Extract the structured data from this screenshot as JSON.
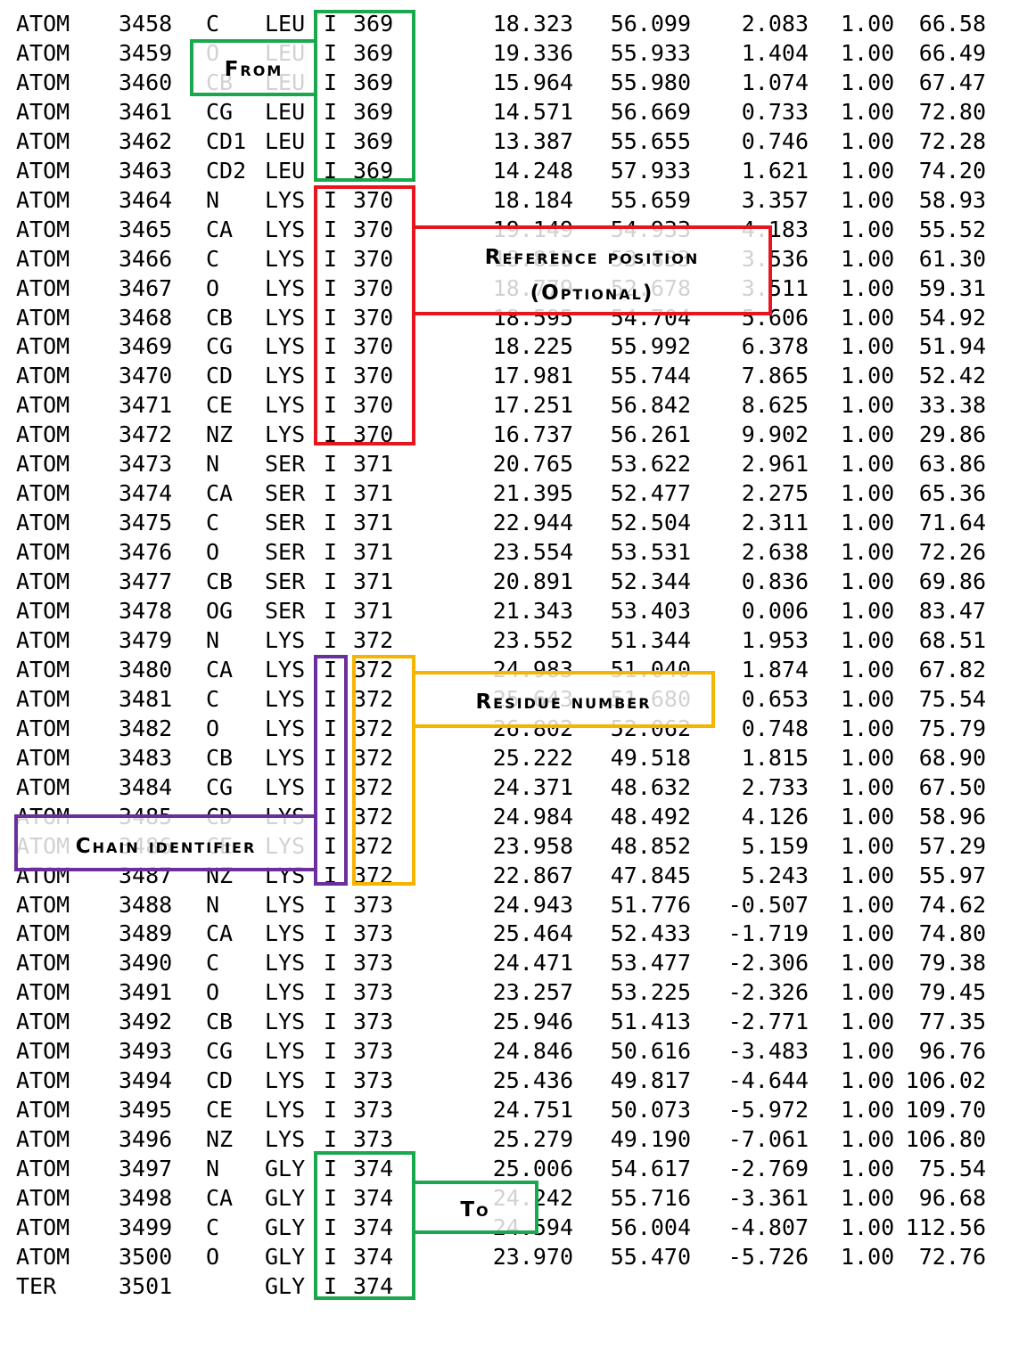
{
  "rows": [
    [
      "ATOM",
      "3458",
      "C",
      "LEU",
      "I",
      "369",
      "18.323",
      "56.099",
      "2.083",
      "1.00",
      "66.58"
    ],
    [
      "ATOM",
      "3459",
      "O",
      "LEU",
      "I",
      "369",
      "19.336",
      "55.933",
      "1.404",
      "1.00",
      "66.49"
    ],
    [
      "ATOM",
      "3460",
      "CB",
      "LEU",
      "I",
      "369",
      "15.964",
      "55.980",
      "1.074",
      "1.00",
      "67.47"
    ],
    [
      "ATOM",
      "3461",
      "CG",
      "LEU",
      "I",
      "369",
      "14.571",
      "56.669",
      "0.733",
      "1.00",
      "72.80"
    ],
    [
      "ATOM",
      "3462",
      "CD1",
      "LEU",
      "I",
      "369",
      "13.387",
      "55.655",
      "0.746",
      "1.00",
      "72.28"
    ],
    [
      "ATOM",
      "3463",
      "CD2",
      "LEU",
      "I",
      "369",
      "14.248",
      "57.933",
      "1.621",
      "1.00",
      "74.20"
    ],
    [
      "ATOM",
      "3464",
      "N",
      "LYS",
      "I",
      "370",
      "18.184",
      "55.659",
      "3.357",
      "1.00",
      "58.93"
    ],
    [
      "ATOM",
      "3465",
      "CA",
      "LYS",
      "I",
      "370",
      "19.149",
      "54.933",
      "4.183",
      "1.00",
      "55.52"
    ],
    [
      "ATOM",
      "3466",
      "C",
      "LYS",
      "I",
      "370",
      "18.818",
      "53.833",
      "3.536",
      "1.00",
      "61.30"
    ],
    [
      "ATOM",
      "3467",
      "O",
      "LYS",
      "I",
      "370",
      "18.779",
      "52.678",
      "3.511",
      "1.00",
      "59.31"
    ],
    [
      "ATOM",
      "3468",
      "CB",
      "LYS",
      "I",
      "370",
      "18.595",
      "54.704",
      "5.606",
      "1.00",
      "54.92"
    ],
    [
      "ATOM",
      "3469",
      "CG",
      "LYS",
      "I",
      "370",
      "18.225",
      "55.992",
      "6.378",
      "1.00",
      "51.94"
    ],
    [
      "ATOM",
      "3470",
      "CD",
      "LYS",
      "I",
      "370",
      "17.981",
      "55.744",
      "7.865",
      "1.00",
      "52.42"
    ],
    [
      "ATOM",
      "3471",
      "CE",
      "LYS",
      "I",
      "370",
      "17.251",
      "56.842",
      "8.625",
      "1.00",
      "33.38"
    ],
    [
      "ATOM",
      "3472",
      "NZ",
      "LYS",
      "I",
      "370",
      "16.737",
      "56.261",
      "9.902",
      "1.00",
      "29.86"
    ],
    [
      "ATOM",
      "3473",
      "N",
      "SER",
      "I",
      "371",
      "20.765",
      "53.622",
      "2.961",
      "1.00",
      "63.86"
    ],
    [
      "ATOM",
      "3474",
      "CA",
      "SER",
      "I",
      "371",
      "21.395",
      "52.477",
      "2.275",
      "1.00",
      "65.36"
    ],
    [
      "ATOM",
      "3475",
      "C",
      "SER",
      "I",
      "371",
      "22.944",
      "52.504",
      "2.311",
      "1.00",
      "71.64"
    ],
    [
      "ATOM",
      "3476",
      "O",
      "SER",
      "I",
      "371",
      "23.554",
      "53.531",
      "2.638",
      "1.00",
      "72.26"
    ],
    [
      "ATOM",
      "3477",
      "CB",
      "SER",
      "I",
      "371",
      "20.891",
      "52.344",
      "0.836",
      "1.00",
      "69.86"
    ],
    [
      "ATOM",
      "3478",
      "OG",
      "SER",
      "I",
      "371",
      "21.343",
      "53.403",
      "0.006",
      "1.00",
      "83.47"
    ],
    [
      "ATOM",
      "3479",
      "N",
      "LYS",
      "I",
      "372",
      "23.552",
      "51.344",
      "1.953",
      "1.00",
      "68.51"
    ],
    [
      "ATOM",
      "3480",
      "CA",
      "LYS",
      "I",
      "372",
      "24.983",
      "51.040",
      "1.874",
      "1.00",
      "67.82"
    ],
    [
      "ATOM",
      "3481",
      "C",
      "LYS",
      "I",
      "372",
      "25.643",
      "51.680",
      "0.653",
      "1.00",
      "75.54"
    ],
    [
      "ATOM",
      "3482",
      "O",
      "LYS",
      "I",
      "372",
      "26.802",
      "52.062",
      "0.748",
      "1.00",
      "75.79"
    ],
    [
      "ATOM",
      "3483",
      "CB",
      "LYS",
      "I",
      "372",
      "25.222",
      "49.518",
      "1.815",
      "1.00",
      "68.90"
    ],
    [
      "ATOM",
      "3484",
      "CG",
      "LYS",
      "I",
      "372",
      "24.371",
      "48.632",
      "2.733",
      "1.00",
      "67.50"
    ],
    [
      "ATOM",
      "3485",
      "CD",
      "LYS",
      "I",
      "372",
      "24.984",
      "48.492",
      "4.126",
      "1.00",
      "58.96"
    ],
    [
      "ATOM",
      "3486",
      "CE",
      "LYS",
      "I",
      "372",
      "23.958",
      "48.852",
      "5.159",
      "1.00",
      "57.29"
    ],
    [
      "ATOM",
      "3487",
      "NZ",
      "LYS",
      "I",
      "372",
      "22.867",
      "47.845",
      "5.243",
      "1.00",
      "55.97"
    ],
    [
      "ATOM",
      "3488",
      "N",
      "LYS",
      "I",
      "373",
      "24.943",
      "51.776",
      "-0.507",
      "1.00",
      "74.62"
    ],
    [
      "ATOM",
      "3489",
      "CA",
      "LYS",
      "I",
      "373",
      "25.464",
      "52.433",
      "-1.719",
      "1.00",
      "74.80"
    ],
    [
      "ATOM",
      "3490",
      "C",
      "LYS",
      "I",
      "373",
      "24.471",
      "53.477",
      "-2.306",
      "1.00",
      "79.38"
    ],
    [
      "ATOM",
      "3491",
      "O",
      "LYS",
      "I",
      "373",
      "23.257",
      "53.225",
      "-2.326",
      "1.00",
      "79.45"
    ],
    [
      "ATOM",
      "3492",
      "CB",
      "LYS",
      "I",
      "373",
      "25.946",
      "51.413",
      "-2.771",
      "1.00",
      "77.35"
    ],
    [
      "ATOM",
      "3493",
      "CG",
      "LYS",
      "I",
      "373",
      "24.846",
      "50.616",
      "-3.483",
      "1.00",
      "96.76"
    ],
    [
      "ATOM",
      "3494",
      "CD",
      "LYS",
      "I",
      "373",
      "25.436",
      "49.817",
      "-4.644",
      "1.00",
      "106.02"
    ],
    [
      "ATOM",
      "3495",
      "CE",
      "LYS",
      "I",
      "373",
      "24.751",
      "50.073",
      "-5.972",
      "1.00",
      "109.70"
    ],
    [
      "ATOM",
      "3496",
      "NZ",
      "LYS",
      "I",
      "373",
      "25.279",
      "49.190",
      "-7.061",
      "1.00",
      "106.80"
    ],
    [
      "ATOM",
      "3497",
      "N",
      "GLY",
      "I",
      "374",
      "25.006",
      "54.617",
      "-2.769",
      "1.00",
      "75.54"
    ],
    [
      "ATOM",
      "3498",
      "CA",
      "GLY",
      "I",
      "374",
      "24.242",
      "55.716",
      "-3.361",
      "1.00",
      "96.68"
    ],
    [
      "ATOM",
      "3499",
      "C",
      "GLY",
      "I",
      "374",
      "24.594",
      "56.004",
      "-4.807",
      "1.00",
      "112.56"
    ],
    [
      "ATOM",
      "3500",
      "O",
      "GLY",
      "I",
      "374",
      "23.970",
      "55.470",
      "-5.726",
      "1.00",
      "72.76"
    ],
    [
      "TER",
      "3501",
      "",
      "GLY",
      "I",
      "374",
      "",
      "",
      "",
      "",
      ""
    ]
  ],
  "labels": {
    "from": "From",
    "reference_position_line1": "Reference position",
    "reference_position_line2": "(Optional)",
    "residue_number": "Residue number",
    "chain_identifier": "Chain identifier",
    "to": "To"
  },
  "colors": {
    "from": "#1aa84e",
    "reference": "#e8141e",
    "residue": "#f5b400",
    "chain": "#6a2f9a",
    "to": "#1aa84e"
  }
}
